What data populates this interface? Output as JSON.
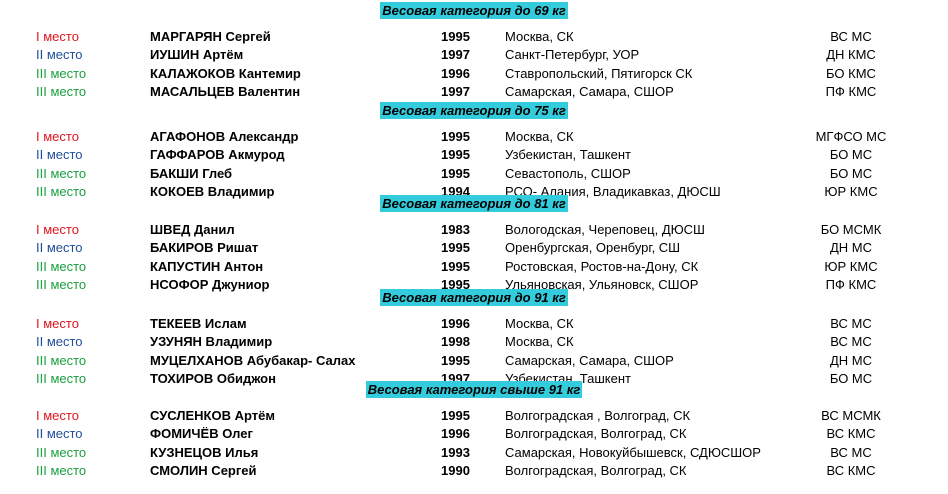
{
  "colors": {
    "first": "#e0141e",
    "second": "#1f4e9a",
    "third": "#1aa040",
    "category_bg": "#33ccdd"
  },
  "categories": [
    {
      "label": "Весовая категория до 69 кг",
      "rows": [
        {
          "place": "I место",
          "name": "МАРГАРЯН Сергей",
          "year": "1995",
          "city": "Москва, СК",
          "title": "ВС МС"
        },
        {
          "place": "II место",
          "name": "ИУШИН Артём",
          "year": "1997",
          "city": "Санкт-Петербург, УОР",
          "title": "ДН КМС"
        },
        {
          "place": "III место",
          "name": "КАЛАЖОКОВ Кантемир",
          "year": "1996",
          "city": "Ставропольский, Пятигорск СК",
          "title": "БО КМС"
        },
        {
          "place": "III место",
          "name": "МАСАЛЬЦЕВ Валентин",
          "year": "1997",
          "city": "Самарская, Самара, СШОР",
          "title": "ПФ КМС"
        }
      ]
    },
    {
      "label": "Весовая категория до 75 кг",
      "rows": [
        {
          "place": "I место",
          "name": "АГАФОНОВ Александр",
          "year": "1995",
          "city": "Москва, СК",
          "title": "МГФСО МС"
        },
        {
          "place": "II место",
          "name": "ГАФФАРОВ Акмурод",
          "year": "1995",
          "city": "Узбекистан, Ташкент",
          "title": "БО МС"
        },
        {
          "place": "III место",
          "name": "БАКШИ Глеб",
          "year": "1995",
          "city": "Севастополь, СШОР",
          "title": "БО МС"
        },
        {
          "place": "III место",
          "name": "КОКОЕВ Владимир",
          "year": "1994",
          "city": "РСО- Алания, Владикавказ, ДЮСШ",
          "title": "ЮР КМС"
        }
      ]
    },
    {
      "label": "Весовая категория до 81 кг",
      "rows": [
        {
          "place": "I место",
          "name": "ШВЕД Данил",
          "year": "1983",
          "city": "Вологодская, Череповец, ДЮСШ",
          "title": "БО МСМК"
        },
        {
          "place": "II место",
          "name": "БАКИРОВ Ришат",
          "year": "1995",
          "city": "Оренбургская, Оренбург, СШ",
          "title": "ДН МС"
        },
        {
          "place": "III место",
          "name": "КАПУСТИН Антон",
          "year": "1995",
          "city": "Ростовская, Ростов-на-Дону, СК",
          "title": "ЮР КМС"
        },
        {
          "place": "III место",
          "name": "НСОФОР Джуниор",
          "year": "1995",
          "city": "Ульяновская, Ульяновск, СШОР",
          "title": "ПФ КМС"
        }
      ]
    },
    {
      "label": "Весовая категория до 91 кг",
      "rows": [
        {
          "place": "I место",
          "name": "ТЕКЕЕВ Ислам",
          "year": "1996",
          "city": "Москва, СК",
          "title": "ВС МС"
        },
        {
          "place": "II место",
          "name": "УЗУНЯН Владимир",
          "year": "1998",
          "city": "Москва, СК",
          "title": "ВС МС"
        },
        {
          "place": "III место",
          "name": "МУЦЕЛХАНОВ Абубакар- Салах",
          "year": "1995",
          "city": "Самарская, Самара, СШОР",
          "title": "ДН МС"
        },
        {
          "place": "III место",
          "name": "ТОХИРОВ Обиджон",
          "year": "1997",
          "city": "Узбекистан, Ташкент",
          "title": "БО МС"
        }
      ]
    },
    {
      "label": "Весовая категория свыше 91 кг",
      "rows": [
        {
          "place": "I место",
          "name": "СУСЛЕНКОВ Артём",
          "year": "1995",
          "city": "Волгоградская , Волгоград, СК",
          "title": "ВС МСМК"
        },
        {
          "place": "II место",
          "name": "ФОМИЧЁВ Олег",
          "year": "1996",
          "city": "Волгоградская, Волгоград, СК",
          "title": "ВС КМС"
        },
        {
          "place": "III место",
          "name": "КУЗНЕЦОВ Илья",
          "year": "1993",
          "city": "Самарская, Новокуйбышевск, СДЮСШОР",
          "title": "ВС МС"
        },
        {
          "place": "III место",
          "name": "СМОЛИН Сергей",
          "year": "1990",
          "city": "Волгоградская, Волгоград, СК",
          "title": "ВС КМС"
        }
      ]
    }
  ]
}
